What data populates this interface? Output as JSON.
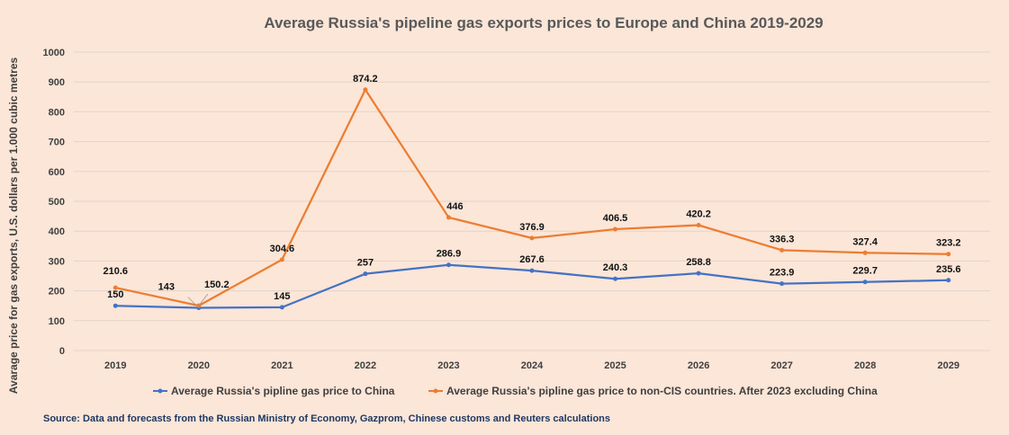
{
  "chart_data": {
    "type": "line",
    "title": "Average Russia's pipeline gas exports prices to Europe and China 2019-2029",
    "ylabel": "Avarage price for gas exports, U.S. dollars per 1.000 cubic metres",
    "xlabel": "",
    "ylim": [
      0,
      1000
    ],
    "yticks": [
      0,
      100,
      200,
      300,
      400,
      500,
      600,
      700,
      800,
      900,
      1000
    ],
    "categories": [
      "2019",
      "2020",
      "2021",
      "2022",
      "2023",
      "2024",
      "2025",
      "2026",
      "2027",
      "2028",
      "2029"
    ],
    "grid": true,
    "legend_position": "bottom",
    "series": [
      {
        "name": "Average Russia's pipline gas price to China",
        "color": "#4472c4",
        "values": [
          150,
          143,
          145,
          257,
          286.9,
          267.6,
          240.3,
          258.8,
          223.9,
          229.7,
          235.6
        ],
        "labels": [
          "150",
          "143",
          "145",
          "257",
          "286.9",
          "267.6",
          "240.3",
          "258.8",
          "223.9",
          "229.7",
          "235.6"
        ]
      },
      {
        "name": "Average Russia's pipline gas price to non-CIS countries. After 2023 excluding China",
        "color": "#ed7d31",
        "values": [
          210.6,
          150.2,
          304.6,
          874.2,
          446,
          376.9,
          406.5,
          420.2,
          336.3,
          327.4,
          323.2
        ],
        "labels": [
          "210.6",
          "150.2",
          "304.6",
          "874.2",
          "446",
          "376.9",
          "406.5",
          "420.2",
          "336.3",
          "327.4",
          "323.2"
        ]
      }
    ],
    "source": "Source: Data and forecasts from the Russian Ministry of Economy, Gazprom, Chinese customs and Reuters calculations"
  }
}
